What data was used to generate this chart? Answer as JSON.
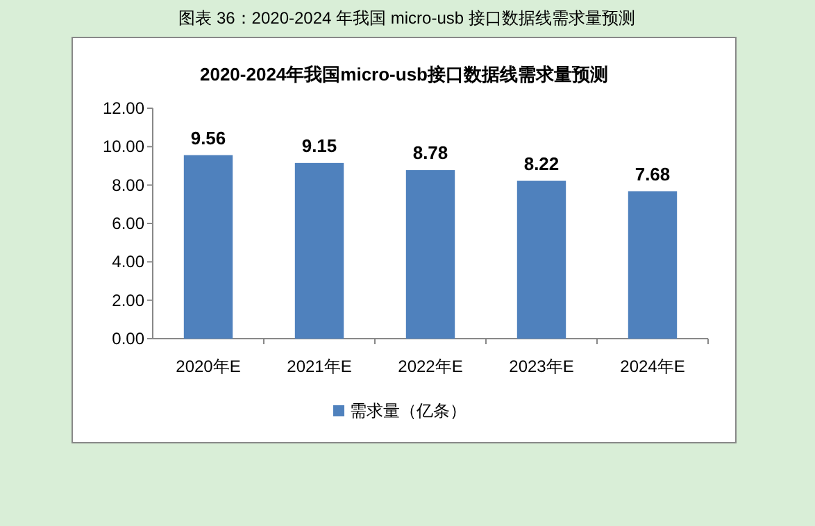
{
  "chart_data": {
    "type": "bar",
    "title": "图表 36：2020-2024 年我国 micro-usb 接口数据线需求量预测",
    "subtitle": "2020-2024年我国micro-usb接口数据线需求量预测",
    "categories": [
      "2020年E",
      "2021年E",
      "2022年E",
      "2023年E",
      "2024年E"
    ],
    "series": [
      {
        "name": "需求量（亿条）",
        "color": "#4f81bd",
        "values": [
          9.56,
          9.15,
          8.78,
          8.22,
          7.68
        ]
      }
    ],
    "ylim": [
      0,
      12
    ],
    "yticks": [
      {
        "value": 0,
        "label": "0.00"
      },
      {
        "value": 2,
        "label": "2.00"
      },
      {
        "value": 4,
        "label": "4.00"
      },
      {
        "value": 6,
        "label": "6.00"
      },
      {
        "value": 8,
        "label": "8.00"
      },
      {
        "value": 10,
        "label": "10.00"
      },
      {
        "value": 12,
        "label": "12.00"
      }
    ],
    "data_labels": true,
    "grid": false,
    "legend": "bottom"
  }
}
